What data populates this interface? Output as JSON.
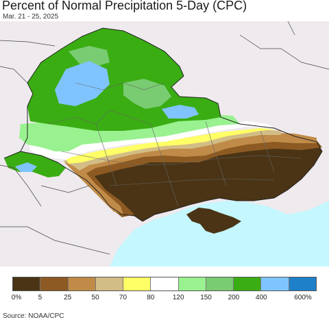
{
  "header": {
    "title": "Percent of Normal Precipitation 5-Day (CPC)",
    "date_range": "Mar. 21 - 25, 2025"
  },
  "legend": {
    "colors": [
      "#4a3415",
      "#8c5a22",
      "#c08b48",
      "#d3bd86",
      "#ffff66",
      "#ffffff",
      "#99f28f",
      "#7acc72",
      "#3aad13",
      "#80c4ff",
      "#1e80c8"
    ],
    "labels": [
      "0%",
      "5",
      "25",
      "50",
      "70",
      "80",
      "120",
      "150",
      "200",
      "400",
      "600%"
    ]
  },
  "map_colors": {
    "land_background": "#efeaee",
    "sea": "#c4f7fe",
    "border": "#222222"
  },
  "footer": {
    "source": "Source: NOAA/CPC"
  }
}
